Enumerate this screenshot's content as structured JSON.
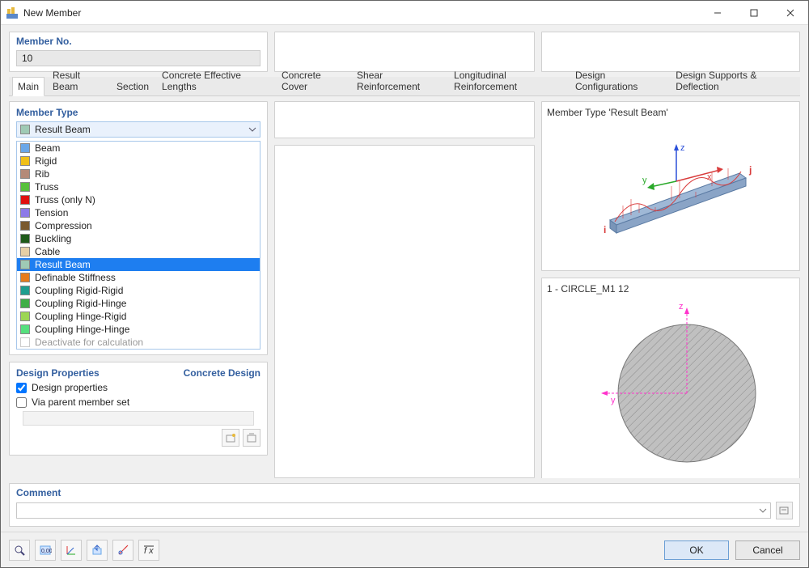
{
  "window": {
    "title": "New Member",
    "minimize": "–",
    "maximize": "▢",
    "close": "✕"
  },
  "member_no": {
    "label": "Member No.",
    "value": "10"
  },
  "tabs": [
    "Main",
    "Result Beam",
    "Section",
    "Concrete Effective Lengths",
    "Concrete Cover",
    "Shear Reinforcement",
    "Longitudinal Reinforcement",
    "Design Configurations",
    "Design Supports & Deflection"
  ],
  "active_tab": "Main",
  "member_type": {
    "heading": "Member Type",
    "selected": "Result Beam",
    "options": [
      {
        "label": "Beam",
        "color": "#6aa7e8"
      },
      {
        "label": "Rigid",
        "color": "#f0c018"
      },
      {
        "label": "Rib",
        "color": "#b48a78"
      },
      {
        "label": "Truss",
        "color": "#58c03c"
      },
      {
        "label": "Truss (only N)",
        "color": "#e01010"
      },
      {
        "label": "Tension",
        "color": "#8c7ae8"
      },
      {
        "label": "Compression",
        "color": "#7a5a2f"
      },
      {
        "label": "Buckling",
        "color": "#1e5a1a"
      },
      {
        "label": "Cable",
        "color": "#e7d0a6"
      },
      {
        "label": "Result Beam",
        "color": "#9fcab5",
        "highlight": true
      },
      {
        "label": "Definable Stiffness",
        "color": "#e67b1c"
      },
      {
        "label": "Coupling Rigid-Rigid",
        "color": "#1f9d8f"
      },
      {
        "label": "Coupling Rigid-Hinge",
        "color": "#3fae46"
      },
      {
        "label": "Coupling Hinge-Rigid",
        "color": "#9cd654"
      },
      {
        "label": "Coupling Hinge-Hinge",
        "color": "#56e07e"
      },
      {
        "label": "Deactivate for calculation",
        "color": "",
        "disabled": true
      }
    ]
  },
  "design_props": {
    "heading": "Design Properties",
    "heading_right": "Concrete Design",
    "opt1": "Design properties",
    "opt1_checked": true,
    "opt2": "Via parent member set",
    "opt2_checked": false
  },
  "comment": {
    "heading": "Comment",
    "value": ""
  },
  "preview_top": {
    "title": "Member Type 'Result Beam'",
    "axes": {
      "x_color": "#d93c3c",
      "y_color": "#2aa92a",
      "z_color": "#2a4fd9"
    },
    "beam_color": "#9fb8d6",
    "wave_color": "#d93c3c",
    "i_label": "i",
    "j_label": "j",
    "x_label": "x",
    "y_label": "y",
    "z_label": "z"
  },
  "preview_bottom": {
    "title": "1 - CIRCLE_M1 12",
    "circle_fill": "#b8b8b8",
    "hatch_color": "#8a8a8a",
    "z_label": "z",
    "z_color": "#ff33cc",
    "y_label": "y",
    "y_color": "#ff33cc",
    "radius": 85
  },
  "right_toolbar_icons": [
    "select-icon",
    "section-icon",
    "distance-icon",
    "split-icon",
    "mirror-icon",
    "shape-icon",
    "ibeam-icon",
    "tee-icon",
    "equal-icon",
    "grid-icon",
    "list-icon",
    "print-icon",
    "alert-icon"
  ],
  "footer": {
    "tool_icons": [
      "zoom-icon",
      "decimals-icon",
      "axes-icon",
      "export-icon",
      "anchor-icon",
      "function-icon"
    ],
    "ok": "OK",
    "cancel": "Cancel"
  },
  "colors": {
    "panel_border": "#d0d0d0",
    "header_text": "#335f9f",
    "selection_bg": "#1e7ef0",
    "combo_bg": "#e9f1fc"
  }
}
